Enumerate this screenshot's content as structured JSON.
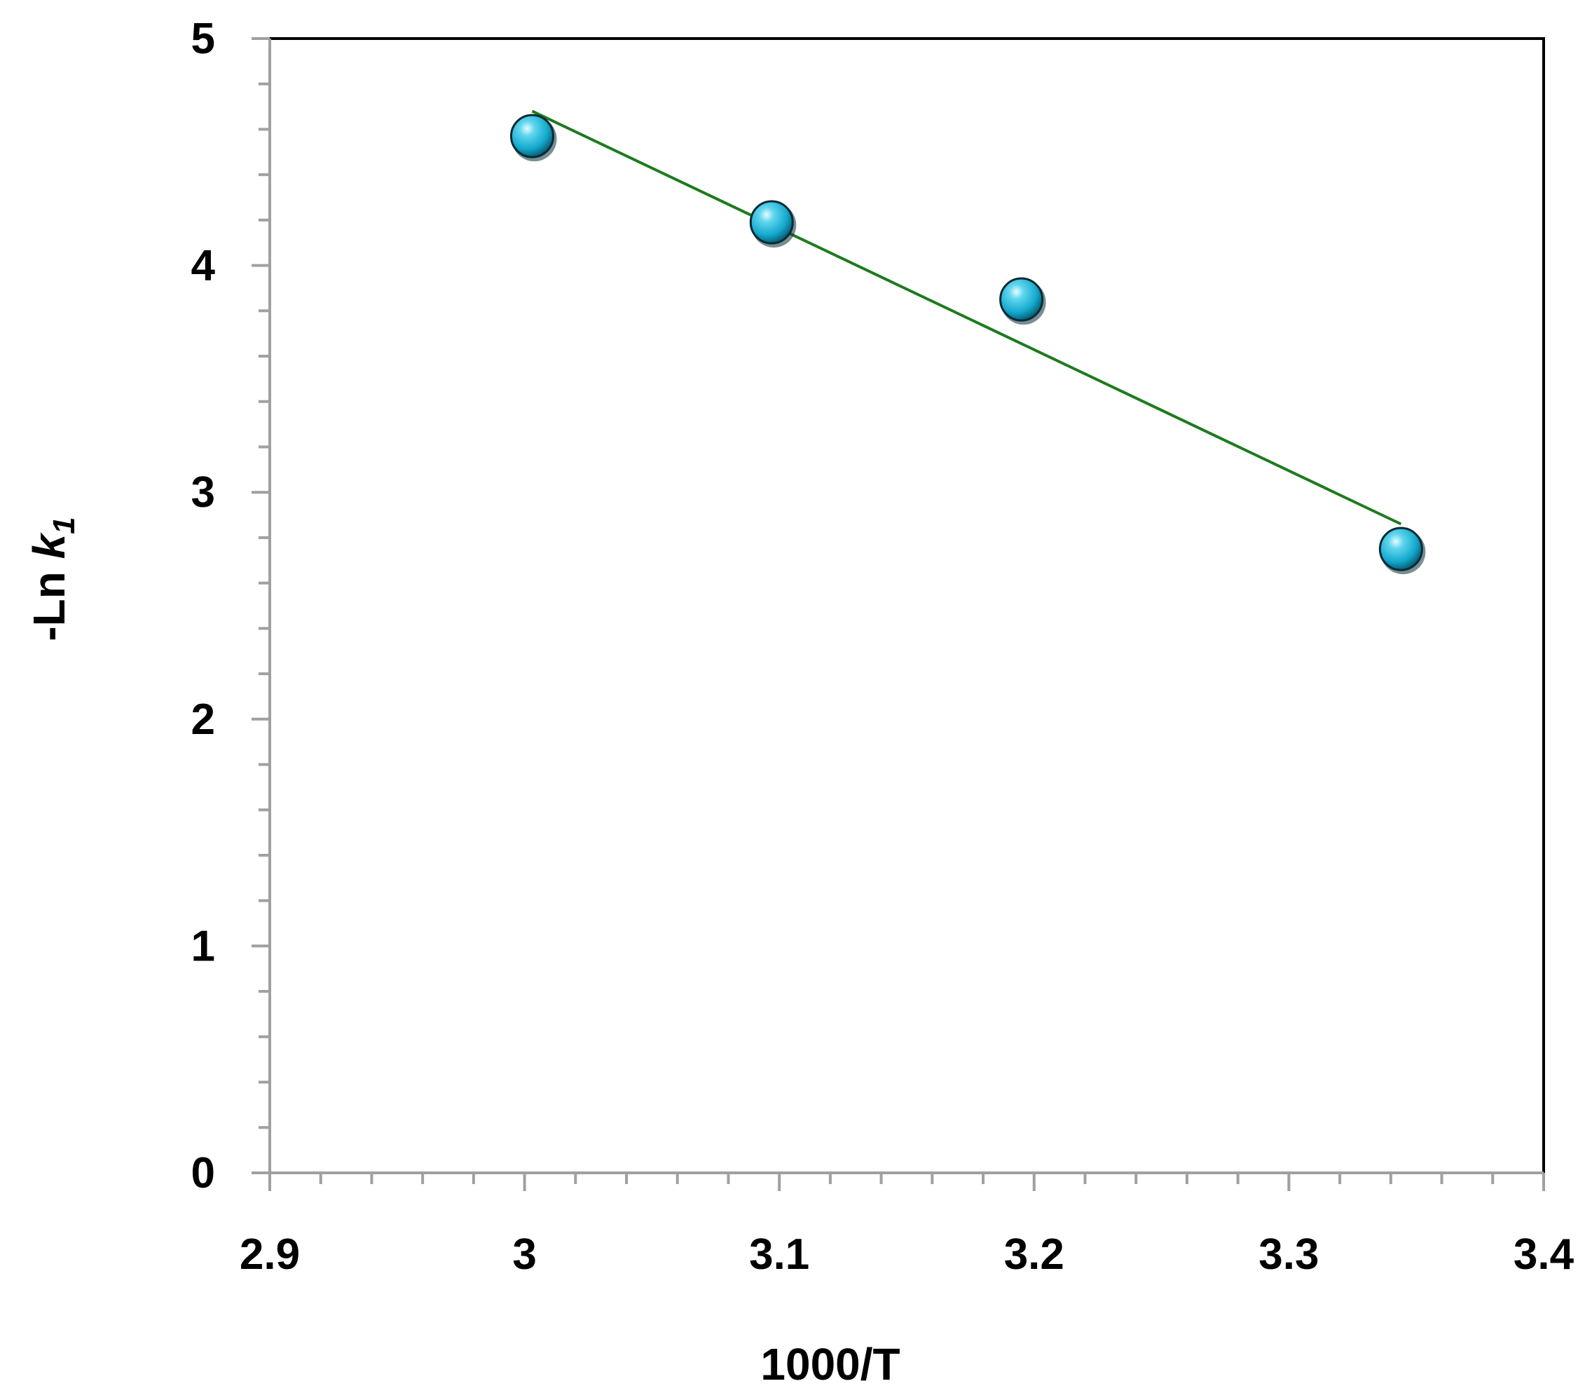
{
  "chart_data": {
    "type": "scatter",
    "title": "",
    "xlabel": "1000/T",
    "ylabel": {
      "prefix": "-Ln ",
      "symbol": "k",
      "subscript": "1"
    },
    "xlim": [
      2.9,
      3.4
    ],
    "ylim": [
      0,
      5
    ],
    "x_ticks": [
      2.9,
      3.0,
      3.1,
      3.2,
      3.3,
      3.4
    ],
    "x_tick_labels": [
      "2.9",
      "3",
      "3.1",
      "3.2",
      "3.3",
      "3.4"
    ],
    "x_minor_step": 0.02,
    "y_ticks": [
      0,
      1,
      2,
      3,
      4,
      5
    ],
    "y_tick_labels": [
      "0",
      "1",
      "2",
      "3",
      "4",
      "5"
    ],
    "y_minor_step": 0.2,
    "grid": false,
    "legend": "none",
    "series": [
      {
        "kind": "points",
        "x": [
          3.003,
          3.097,
          3.195,
          3.344
        ],
        "y": [
          4.57,
          4.19,
          3.85,
          2.75
        ],
        "color": "#1fb8d8"
      },
      {
        "kind": "fit-line",
        "x": [
          3.003,
          3.344
        ],
        "y": [
          4.68,
          2.86
        ],
        "color": "#1e7a1e"
      }
    ],
    "colors": {
      "frame": "#000000",
      "axis": "#a0a0a0",
      "point": "#1fb8d8",
      "fit_line": "#1e7a1e"
    }
  }
}
